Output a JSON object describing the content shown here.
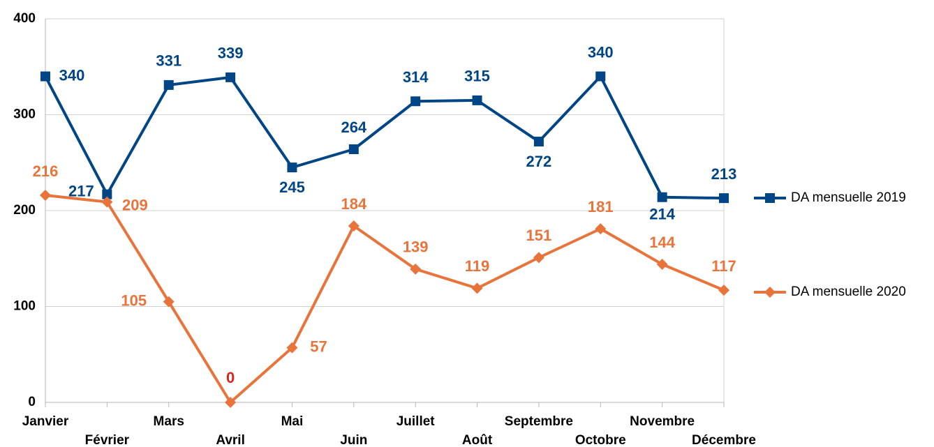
{
  "chart_data": {
    "type": "line",
    "categories": [
      "Janvier",
      "Février",
      "Mars",
      "Avril",
      "Mai",
      "Juin",
      "Juillet",
      "Août",
      "Septembre",
      "Octobre",
      "Novembre",
      "Décembre"
    ],
    "series": [
      {
        "name": "DA mensuelle 2019",
        "color": "#004586",
        "marker": "square",
        "values": [
          340,
          217,
          331,
          339,
          245,
          264,
          314,
          315,
          272,
          340,
          214,
          213
        ]
      },
      {
        "name": "DA mensuelle 2020",
        "color": "#e8743b",
        "marker": "diamond",
        "values": [
          216,
          209,
          105,
          0,
          57,
          184,
          139,
          119,
          151,
          181,
          144,
          117
        ]
      }
    ],
    "ylim": [
      0,
      400
    ],
    "yticks": [
      0,
      100,
      200,
      300,
      400
    ],
    "grid": true,
    "legend": "right"
  }
}
